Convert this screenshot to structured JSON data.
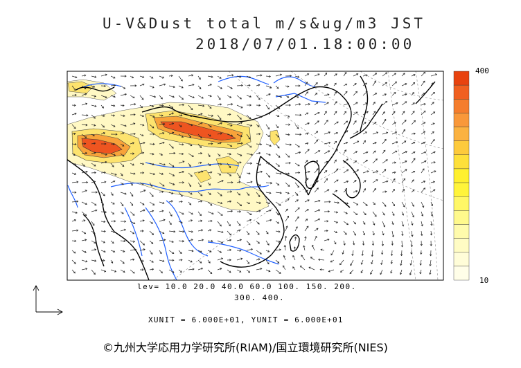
{
  "header": {
    "title_line1": "U-V&Dust total m/s&ug/m3 JST",
    "title_line2": "2018/07/01.18:00:00"
  },
  "levels": {
    "line1": "lev= 10.0 20.0 40.0 60.0 100. 150. 200.",
    "line2": "300. 400."
  },
  "units_text": "XUNIT = 6.000E+01, YUNIT = 6.000E+01",
  "credit": "©九州大学応用力学研究所(RIAM)/国立環境研究所(NIES)",
  "colorbar": {
    "max_label": "400",
    "min_label": "10",
    "colors": [
      "#e8430f",
      "#f06020",
      "#f57d2d",
      "#f9983a",
      "#fbb241",
      "#fdca3c",
      "#fee03a",
      "#fff02e",
      "#fff43a",
      "#fff766",
      "#fff98c",
      "#fffbac",
      "#fffcc4",
      "#fffdd8",
      "#fffee8"
    ]
  },
  "map_colors": {
    "rivers": "#2060ff",
    "dust_low": "#fff6b0",
    "dust_mid": "#f8d45a",
    "dust_high": "#ef5a1e",
    "coast": "#000000"
  }
}
